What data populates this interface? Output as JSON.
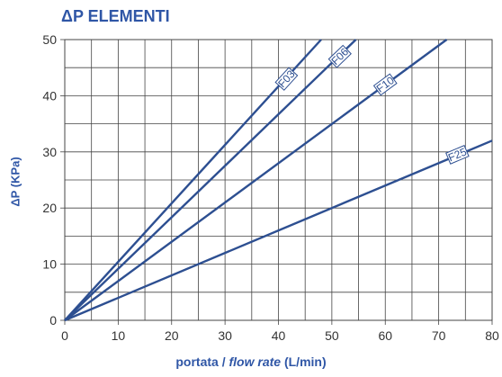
{
  "chart_data": {
    "type": "line",
    "title": "ΔP ELEMENTI",
    "xlabel_parts": [
      "portata / ",
      "flow rate",
      " (L/min)"
    ],
    "ylabel": "ΔP (KPa)",
    "xlim": [
      0,
      80
    ],
    "ylim": [
      0,
      50
    ],
    "x_ticks": [
      0,
      10,
      20,
      30,
      40,
      50,
      60,
      70,
      80
    ],
    "y_ticks": [
      0,
      10,
      20,
      30,
      40,
      50
    ],
    "grid": true,
    "minor_x_step": 5,
    "minor_y_step": 5,
    "series": [
      {
        "name": "F03",
        "x": [
          0,
          48
        ],
        "y": [
          0,
          50
        ],
        "label_at": [
          41.5,
          43
        ]
      },
      {
        "name": "F06",
        "x": [
          0,
          54.5
        ],
        "y": [
          0,
          50
        ],
        "label_at": [
          51.5,
          47
        ]
      },
      {
        "name": "F10",
        "x": [
          0,
          71.5
        ],
        "y": [
          0,
          50
        ],
        "label_at": [
          60,
          42
        ]
      },
      {
        "name": "F25",
        "x": [
          0,
          80
        ],
        "y": [
          0,
          32
        ],
        "label_at": [
          73.5,
          29.5
        ]
      }
    ],
    "colors": {
      "line": "#2d4f91",
      "title": "#2f56a6",
      "grid": "#444444"
    }
  }
}
